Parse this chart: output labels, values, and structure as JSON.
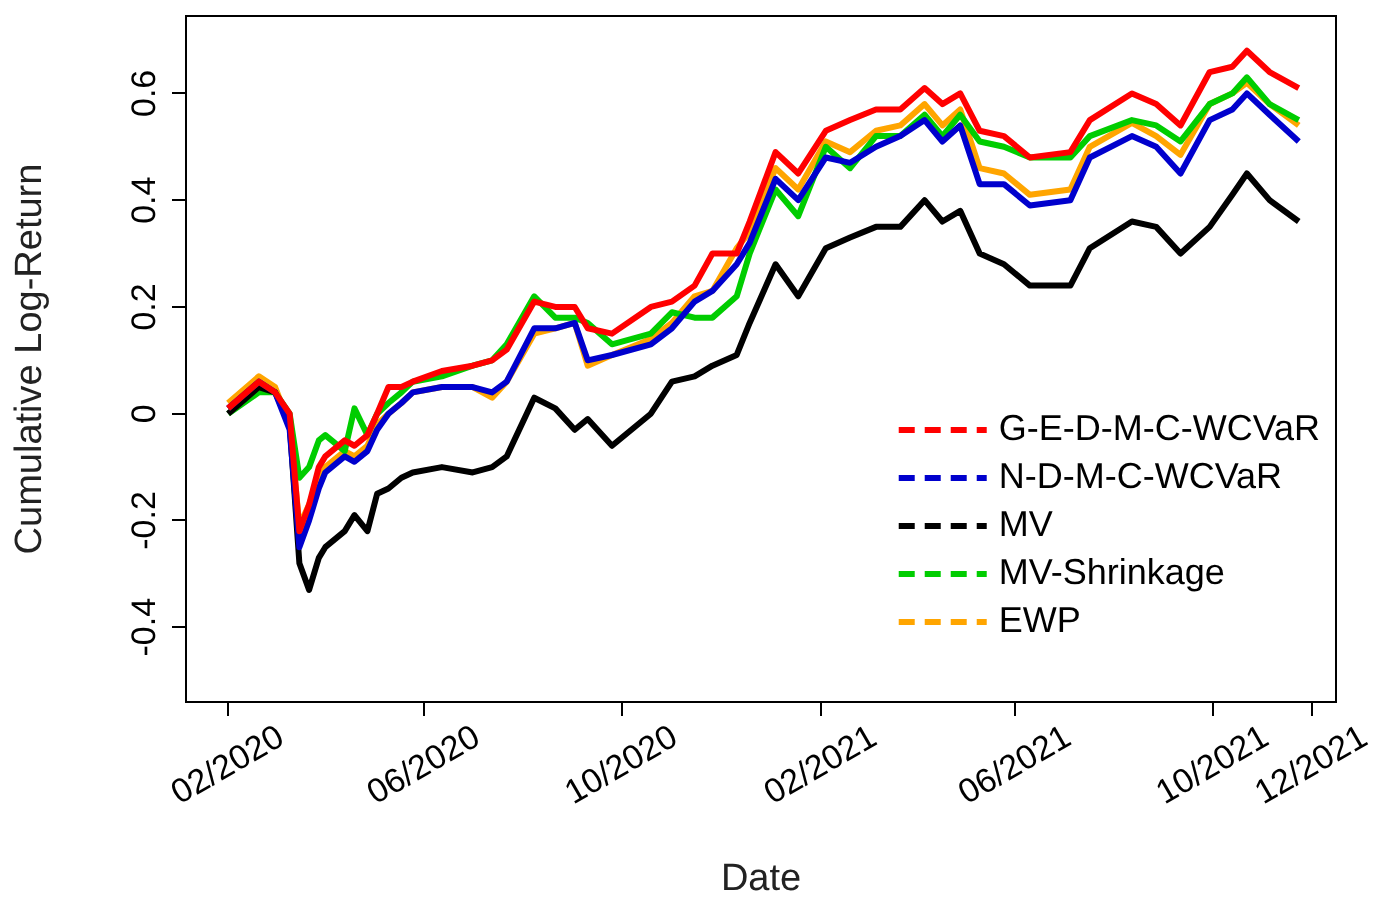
{
  "chart_data": {
    "type": "line",
    "xlabel": "Date",
    "ylabel": "Cumulative Log-Return",
    "x": [
      "2020-02-01",
      "2020-02-20",
      "2020-03-01",
      "2020-03-10",
      "2020-03-16",
      "2020-03-22",
      "2020-03-28",
      "2020-04-01",
      "2020-04-13",
      "2020-04-19",
      "2020-04-27",
      "2020-05-03",
      "2020-05-10",
      "2020-05-18",
      "2020-05-25",
      "2020-06-12",
      "2020-07-01",
      "2020-07-13",
      "2020-07-22",
      "2020-08-08",
      "2020-08-21",
      "2020-09-02",
      "2020-09-10",
      "2020-09-25",
      "2020-10-19",
      "2020-11-01",
      "2020-11-15",
      "2020-11-26",
      "2020-12-11",
      "2020-12-19",
      "2021-01-04",
      "2021-01-18",
      "2021-02-04",
      "2021-02-19",
      "2021-03-07",
      "2021-03-22",
      "2021-04-06",
      "2021-04-17",
      "2021-04-28",
      "2021-05-10",
      "2021-05-25",
      "2021-06-10",
      "2021-07-05",
      "2021-07-17",
      "2021-08-12",
      "2021-08-27",
      "2021-09-11",
      "2021-09-29",
      "2021-10-13",
      "2021-10-22",
      "2021-11-05",
      "2021-11-23"
    ],
    "series": [
      {
        "name": "G-E-D-M-C-WCVaR",
        "color": "#ff0000",
        "values": [
          0.01,
          0.06,
          0.04,
          0.0,
          -0.22,
          -0.17,
          -0.1,
          -0.08,
          -0.05,
          -0.06,
          -0.04,
          0.0,
          0.05,
          0.05,
          0.06,
          0.08,
          0.09,
          0.1,
          0.12,
          0.21,
          0.2,
          0.2,
          0.16,
          0.15,
          0.2,
          0.21,
          0.24,
          0.3,
          0.3,
          0.36,
          0.49,
          0.45,
          0.53,
          0.55,
          0.57,
          0.57,
          0.61,
          0.58,
          0.6,
          0.53,
          0.52,
          0.48,
          0.49,
          0.55,
          0.6,
          0.58,
          0.54,
          0.64,
          0.65,
          0.68,
          0.64,
          0.61
        ]
      },
      {
        "name": "N-D-M-C-WCVaR",
        "color": "#0000cd",
        "values": [
          0.01,
          0.06,
          0.04,
          -0.03,
          -0.25,
          -0.2,
          -0.14,
          -0.11,
          -0.08,
          -0.09,
          -0.07,
          -0.03,
          0.0,
          0.02,
          0.04,
          0.05,
          0.05,
          0.04,
          0.06,
          0.16,
          0.16,
          0.17,
          0.1,
          0.11,
          0.13,
          0.16,
          0.21,
          0.23,
          0.28,
          0.32,
          0.44,
          0.4,
          0.48,
          0.47,
          0.5,
          0.52,
          0.55,
          0.51,
          0.54,
          0.43,
          0.43,
          0.39,
          0.4,
          0.48,
          0.52,
          0.5,
          0.45,
          0.55,
          0.57,
          0.6,
          0.56,
          0.51
        ]
      },
      {
        "name": "MV",
        "color": "#000000",
        "values": [
          0.0,
          0.05,
          0.04,
          -0.02,
          -0.28,
          -0.33,
          -0.27,
          -0.25,
          -0.22,
          -0.19,
          -0.22,
          -0.15,
          -0.14,
          -0.12,
          -0.11,
          -0.1,
          -0.11,
          -0.1,
          -0.08,
          0.03,
          0.01,
          -0.03,
          -0.01,
          -0.06,
          0.0,
          0.06,
          0.07,
          0.09,
          0.11,
          0.17,
          0.28,
          0.22,
          0.31,
          0.33,
          0.35,
          0.35,
          0.4,
          0.36,
          0.38,
          0.3,
          0.28,
          0.24,
          0.24,
          0.31,
          0.36,
          0.35,
          0.3,
          0.35,
          0.41,
          0.45,
          0.4,
          0.36
        ]
      },
      {
        "name": "MV-Shrinkage",
        "color": "#00cd00",
        "values": [
          0.0,
          0.04,
          0.04,
          0.0,
          -0.12,
          -0.1,
          -0.05,
          -0.04,
          -0.07,
          0.01,
          -0.04,
          0.0,
          0.02,
          0.04,
          0.06,
          0.07,
          0.09,
          0.1,
          0.13,
          0.22,
          0.18,
          0.18,
          0.17,
          0.13,
          0.15,
          0.19,
          0.18,
          0.18,
          0.22,
          0.3,
          0.42,
          0.37,
          0.5,
          0.46,
          0.52,
          0.52,
          0.56,
          0.52,
          0.56,
          0.51,
          0.5,
          0.48,
          0.48,
          0.52,
          0.55,
          0.54,
          0.51,
          0.58,
          0.6,
          0.63,
          0.58,
          0.55
        ]
      },
      {
        "name": "EWP",
        "color": "#ffa500",
        "values": [
          0.02,
          0.07,
          0.05,
          -0.02,
          -0.21,
          -0.17,
          -0.12,
          -0.1,
          -0.07,
          -0.08,
          -0.06,
          -0.02,
          0.0,
          0.02,
          0.04,
          0.05,
          0.05,
          0.03,
          0.06,
          0.15,
          0.16,
          0.17,
          0.09,
          0.11,
          0.14,
          0.17,
          0.22,
          0.23,
          0.31,
          0.34,
          0.46,
          0.42,
          0.51,
          0.49,
          0.53,
          0.54,
          0.58,
          0.54,
          0.57,
          0.46,
          0.45,
          0.41,
          0.42,
          0.5,
          0.545,
          0.52,
          0.485,
          0.58,
          0.6,
          0.62,
          0.58,
          0.54
        ]
      }
    ],
    "xlim": [
      "2020-01-06",
      "2021-12-16"
    ],
    "xticks": [
      {
        "value": "2020-02",
        "label": "02/2020"
      },
      {
        "value": "2020-06",
        "label": "06/2020"
      },
      {
        "value": "2020-10",
        "label": "10/2020"
      },
      {
        "value": "2021-02",
        "label": "02/2021"
      },
      {
        "value": "2021-06",
        "label": "06/2021"
      },
      {
        "value": "2021-10",
        "label": "10/2021"
      },
      {
        "value": "2021-12",
        "label": "12/2021"
      }
    ],
    "ylim": [
      -0.54,
      0.745
    ],
    "yticks": [
      {
        "value": -0.4,
        "label": "-0.4"
      },
      {
        "value": -0.2,
        "label": "-0.2"
      },
      0,
      {
        "value": 0.2,
        "label": "0.2"
      },
      {
        "value": 0.4,
        "label": "0.4"
      },
      {
        "value": 0.6,
        "label": "0.6"
      }
    ],
    "grid": false,
    "legend": "bottom right",
    "marker": "none",
    "line_style": "solid"
  }
}
